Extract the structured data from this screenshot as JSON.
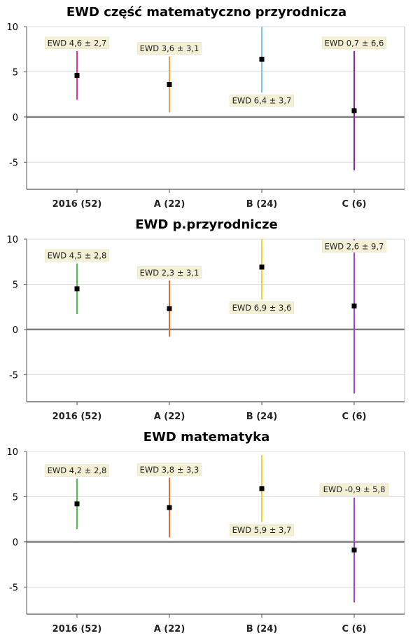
{
  "chart_data": [
    {
      "type": "errorbar",
      "title": "EWD część matematyczno przyrodnicza",
      "categories": [
        "2016 (52)",
        "A (22)",
        "B (24)",
        "C (6)"
      ],
      "values": [
        4.6,
        3.6,
        6.4,
        0.7
      ],
      "errors": [
        2.7,
        3.1,
        3.7,
        6.6
      ],
      "labels": [
        "EWD 4,6 ± 2,7",
        "EWD 3,6 ± 3,1",
        "EWD 6,4 ± 3,7",
        "EWD 0,7 ± 6,6"
      ],
      "colors": [
        "#e8338a",
        "#f5a33a",
        "#7ac5ee",
        "#8a1fa8"
      ],
      "label_positions": [
        "above",
        "above",
        "below",
        "above"
      ],
      "ylim": [
        -8,
        10
      ],
      "yticks": [
        10,
        5,
        0,
        -5
      ],
      "grid": true
    },
    {
      "type": "errorbar",
      "title": "EWD p.przyrodnicze",
      "categories": [
        "2016 (52)",
        "A (22)",
        "B (24)",
        "C (6)"
      ],
      "values": [
        4.5,
        2.3,
        6.9,
        2.6
      ],
      "errors": [
        2.8,
        3.1,
        3.6,
        9.7
      ],
      "labels": [
        "EWD 4,5 ± 2,8",
        "EWD 2,3 ± 3,1",
        "EWD 6,9 ± 3,6",
        "EWD 2,6 ± 9,7"
      ],
      "colors": [
        "#49c24a",
        "#ee6a2a",
        "#f2d23a",
        "#a43fd4"
      ],
      "label_positions": [
        "above",
        "above",
        "below",
        "above"
      ],
      "ylim": [
        -8,
        10
      ],
      "yticks": [
        10,
        5,
        0,
        -5
      ],
      "grid": true
    },
    {
      "type": "errorbar",
      "title": "EWD matematyka",
      "categories": [
        "2016 (52)",
        "A (22)",
        "B (24)",
        "C (6)"
      ],
      "values": [
        4.2,
        3.8,
        5.9,
        -0.9
      ],
      "errors": [
        2.8,
        3.3,
        3.7,
        5.8
      ],
      "labels": [
        "EWD 4,2 ± 2,8",
        "EWD 3,8 ± 3,3",
        "EWD 5,9 ± 3,7",
        "EWD -0,9 ± 5,8"
      ],
      "colors": [
        "#49c24a",
        "#ee6a2a",
        "#f2d23a",
        "#a43fd4"
      ],
      "label_positions": [
        "above",
        "above",
        "below",
        "above"
      ],
      "ylim": [
        -8,
        10
      ],
      "yticks": [
        10,
        5,
        0,
        -5
      ],
      "grid": true
    }
  ]
}
